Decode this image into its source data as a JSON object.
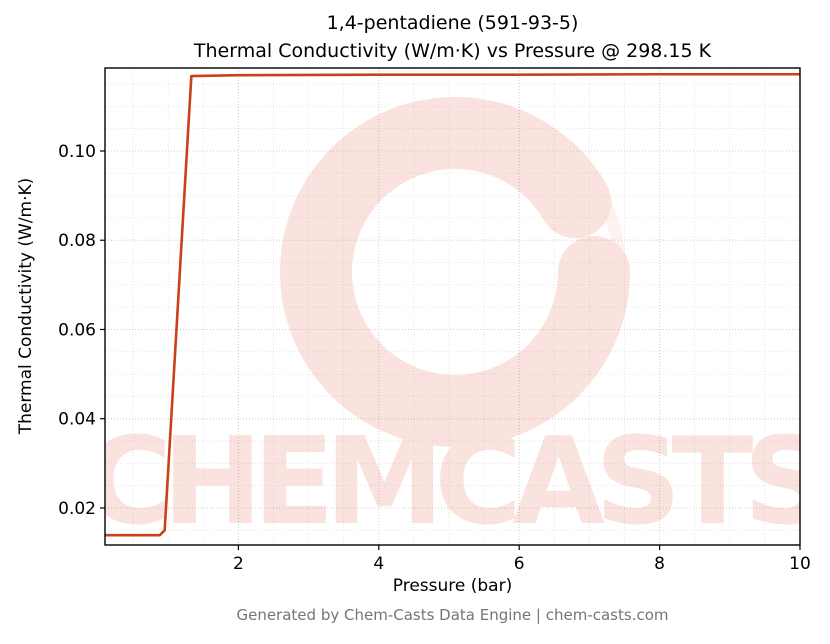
{
  "page": {
    "footer": "Generated by Chem-Casts Data Engine | chem-casts.com"
  },
  "chart_data": {
    "type": "line",
    "title": "1,4-pentadiene (591-93-5)",
    "subtitle": "Thermal Conductivity (W/m·K) vs Pressure @ 298.15 K",
    "xlabel": "Pressure (bar)",
    "ylabel": "Thermal Conductivity (W/m·K)",
    "xlim": [
      0.1,
      10
    ],
    "ylim": [
      0.0117,
      0.1186
    ],
    "xticks": [
      2,
      4,
      6,
      8,
      10
    ],
    "yticks": [
      0.02,
      0.04,
      0.06,
      0.08,
      0.1
    ],
    "x_minor_step": 0.5,
    "y_minor_step": 0.005,
    "grid": true,
    "legend": false,
    "line_color": "#cb4017",
    "series": [
      {
        "name": "thermal_conductivity",
        "points": [
          [
            0.1,
            0.0139
          ],
          [
            0.88,
            0.0139
          ],
          [
            0.95,
            0.015
          ],
          [
            1.33,
            0.1168
          ],
          [
            2,
            0.117
          ],
          [
            4,
            0.1171
          ],
          [
            6,
            0.1171
          ],
          [
            8,
            0.1172
          ],
          [
            10,
            0.1172
          ]
        ]
      }
    ],
    "watermark": {
      "text": "CHEMCASTS",
      "logo": "c-brush-ring-icon",
      "color": "#e0523c",
      "opacity": 0.17
    }
  }
}
